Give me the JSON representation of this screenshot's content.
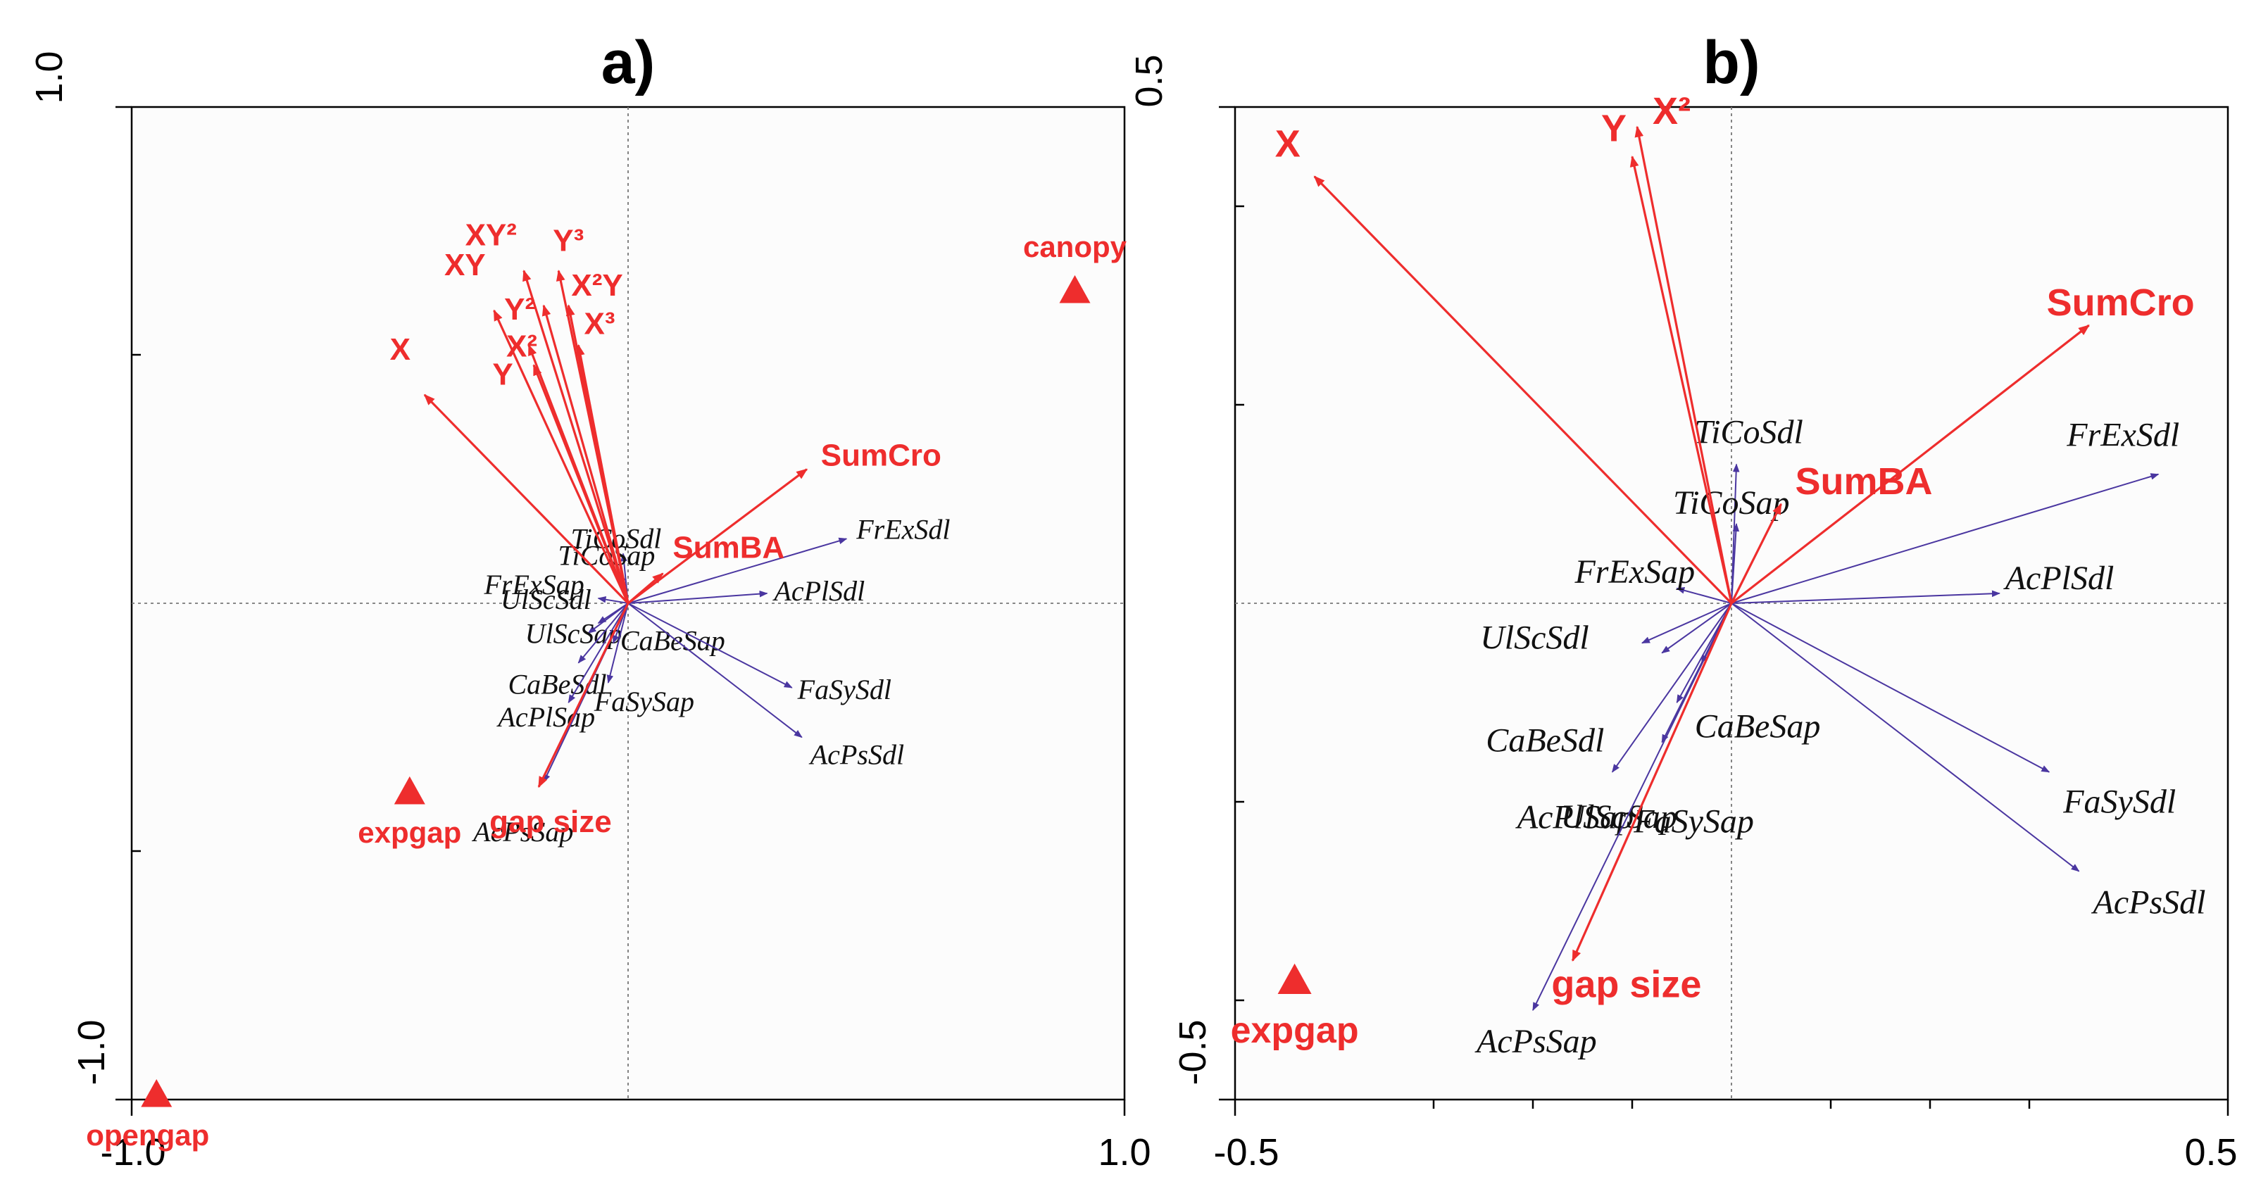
{
  "figure": {
    "background": "#ffffff"
  },
  "colors": {
    "env": "#ee2d2d",
    "species": "#4a36a0",
    "text": "#111111"
  },
  "chart_data": [
    {
      "type": "scatter",
      "title": "a)",
      "xlim": [
        -1.0,
        1.0
      ],
      "ylim": [
        -1.0,
        1.0
      ],
      "x_tick_labels": [
        "-1.0",
        "1.0"
      ],
      "y_tick_labels": [
        "1.0",
        "-1.0"
      ],
      "zero_lines": true,
      "env_vectors": [
        {
          "name": "X",
          "x": -0.41,
          "y": 0.42
        },
        {
          "name": "XY",
          "x": -0.27,
          "y": 0.59
        },
        {
          "name": "XY²",
          "x": -0.21,
          "y": 0.67
        },
        {
          "name": "Y³",
          "x": -0.14,
          "y": 0.67
        },
        {
          "name": "X²Y",
          "x": -0.12,
          "y": 0.6
        },
        {
          "name": "Y²",
          "x": -0.17,
          "y": 0.6
        },
        {
          "name": "X²",
          "x": -0.2,
          "y": 0.52
        },
        {
          "name": "X³",
          "x": -0.1,
          "y": 0.52
        },
        {
          "name": "Y",
          "x": -0.19,
          "y": 0.48
        },
        {
          "name": "SumCro",
          "x": 0.36,
          "y": 0.27
        },
        {
          "name": "SumBA",
          "x": 0.07,
          "y": 0.06
        },
        {
          "name": "gap size",
          "x": -0.18,
          "y": -0.37
        }
      ],
      "species_vectors": [
        {
          "name": "TiCoSdl",
          "x": -0.01,
          "y": 0.1
        },
        {
          "name": "TiCoSap",
          "x": -0.015,
          "y": 0.06
        },
        {
          "name": "FrExSdl",
          "x": 0.44,
          "y": 0.13
        },
        {
          "name": "AcPlSdl",
          "x": 0.28,
          "y": 0.02
        },
        {
          "name": "FrExSap",
          "x": -0.06,
          "y": 0.01
        },
        {
          "name": "UlScSdl",
          "x": -0.06,
          "y": -0.04
        },
        {
          "name": "UlScSap",
          "x": -0.08,
          "y": -0.06
        },
        {
          "name": "CaBeSdl",
          "x": -0.1,
          "y": -0.12
        },
        {
          "name": "CaBeSap",
          "x": -0.03,
          "y": -0.08
        },
        {
          "name": "FaSySap",
          "x": -0.04,
          "y": -0.16
        },
        {
          "name": "AcPlSap",
          "x": -0.12,
          "y": -0.2
        },
        {
          "name": "FaSySdl",
          "x": 0.33,
          "y": -0.17
        },
        {
          "name": "AcPsSdl",
          "x": 0.35,
          "y": -0.27
        },
        {
          "name": "AcPsSap",
          "x": -0.17,
          "y": -0.36
        }
      ],
      "samples": [
        {
          "name": "canopy",
          "x": 0.9,
          "y": 0.63
        },
        {
          "name": "expgap",
          "x": -0.44,
          "y": -0.38
        },
        {
          "name": "opengap",
          "x": -0.95,
          "y": -0.99
        }
      ]
    },
    {
      "type": "scatter",
      "title": "b)",
      "xlim": [
        -0.5,
        0.5
      ],
      "ylim": [
        -0.5,
        0.5
      ],
      "x_tick_labels": [
        "-0.5",
        "0.5"
      ],
      "y_tick_labels": [
        "0.5",
        "-0.5"
      ],
      "zero_lines": true,
      "env_vectors": [
        {
          "name": "X",
          "x": -0.42,
          "y": 0.43
        },
        {
          "name": "Y",
          "x": -0.1,
          "y": 0.45
        },
        {
          "name": "X²",
          "x": -0.095,
          "y": 0.48
        },
        {
          "name": "SumCro",
          "x": 0.36,
          "y": 0.28
        },
        {
          "name": "SumBA",
          "x": 0.05,
          "y": 0.1
        },
        {
          "name": "gap size",
          "x": -0.16,
          "y": -0.36
        }
      ],
      "species_vectors": [
        {
          "name": "TiCoSdl",
          "x": 0.005,
          "y": 0.14
        },
        {
          "name": "TiCoSap",
          "x": 0.005,
          "y": 0.08
        },
        {
          "name": "FrExSdl",
          "x": 0.43,
          "y": 0.13
        },
        {
          "name": "AcPlSdl",
          "x": 0.27,
          "y": 0.01
        },
        {
          "name": "FrExSap",
          "x": -0.055,
          "y": 0.015
        },
        {
          "name": "UlScSdl",
          "x": -0.09,
          "y": -0.04
        },
        {
          "name": "CaBeSdl",
          "x": -0.07,
          "y": -0.05
        },
        {
          "name": "CaBeSap",
          "x": -0.03,
          "y": -0.06
        },
        {
          "name": "UlScSap",
          "x": -0.055,
          "y": -0.1
        },
        {
          "name": "FaSySap",
          "x": -0.07,
          "y": -0.14
        },
        {
          "name": "AcPlSap",
          "x": -0.12,
          "y": -0.17
        },
        {
          "name": "FaSySdl",
          "x": 0.32,
          "y": -0.17
        },
        {
          "name": "AcPsSdl",
          "x": 0.35,
          "y": -0.27
        },
        {
          "name": "AcPsSap",
          "x": -0.2,
          "y": -0.41
        }
      ],
      "samples": [
        {
          "name": "expgap",
          "x": -0.44,
          "y": -0.38
        }
      ]
    }
  ]
}
